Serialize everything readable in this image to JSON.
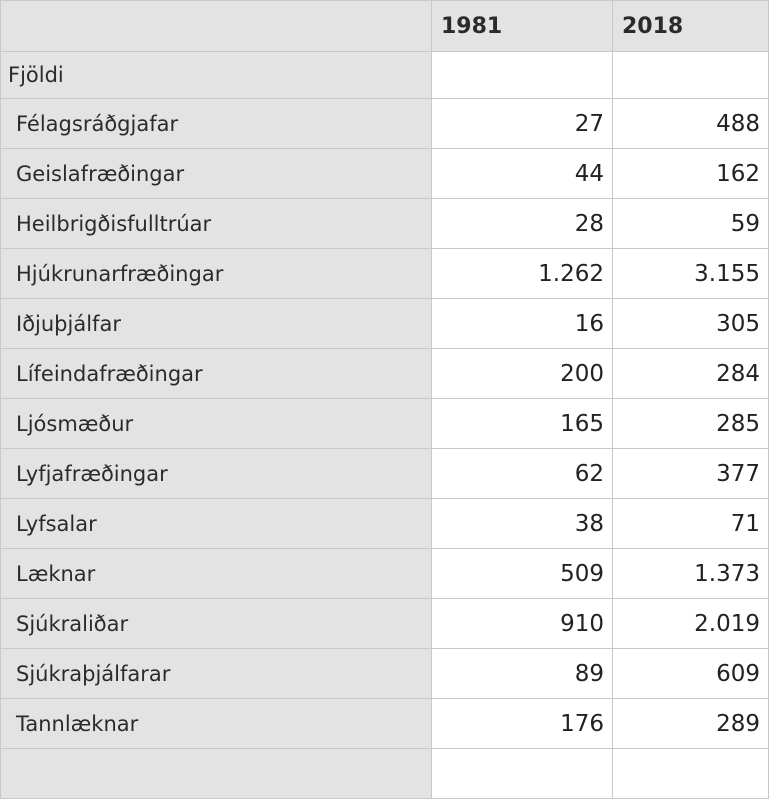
{
  "table": {
    "columns": [
      "",
      "1981",
      "2018"
    ],
    "group_label": "Fjöldi",
    "rows": [
      {
        "label": "Félagsráðgjafar",
        "v1981": "27",
        "v2018": "488"
      },
      {
        "label": "Geislafræðingar",
        "v1981": "44",
        "v2018": "162"
      },
      {
        "label": "Heilbrigðisfulltrúar",
        "v1981": "28",
        "v2018": "59"
      },
      {
        "label": "Hjúkrunarfræðingar",
        "v1981": "1.262",
        "v2018": "3.155"
      },
      {
        "label": "Iðjuþjálfar",
        "v1981": "16",
        "v2018": "305"
      },
      {
        "label": "Lífeindafræðingar",
        "v1981": "200",
        "v2018": "284"
      },
      {
        "label": "Ljósmæður",
        "v1981": "165",
        "v2018": "285"
      },
      {
        "label": "Lyfjafræðingar",
        "v1981": "62",
        "v2018": "377"
      },
      {
        "label": "Lyfsalar",
        "v1981": "38",
        "v2018": "71"
      },
      {
        "label": "Læknar",
        "v1981": "509",
        "v2018": "1.373"
      },
      {
        "label": "Sjúkraliðar",
        "v1981": "910",
        "v2018": "2.019"
      },
      {
        "label": "Sjúkraþjálfarar",
        "v1981": "89",
        "v2018": "609"
      },
      {
        "label": "Tannlæknar",
        "v1981": "176",
        "v2018": "289"
      },
      {
        "label": "",
        "v1981": "",
        "v2018": ""
      }
    ]
  }
}
